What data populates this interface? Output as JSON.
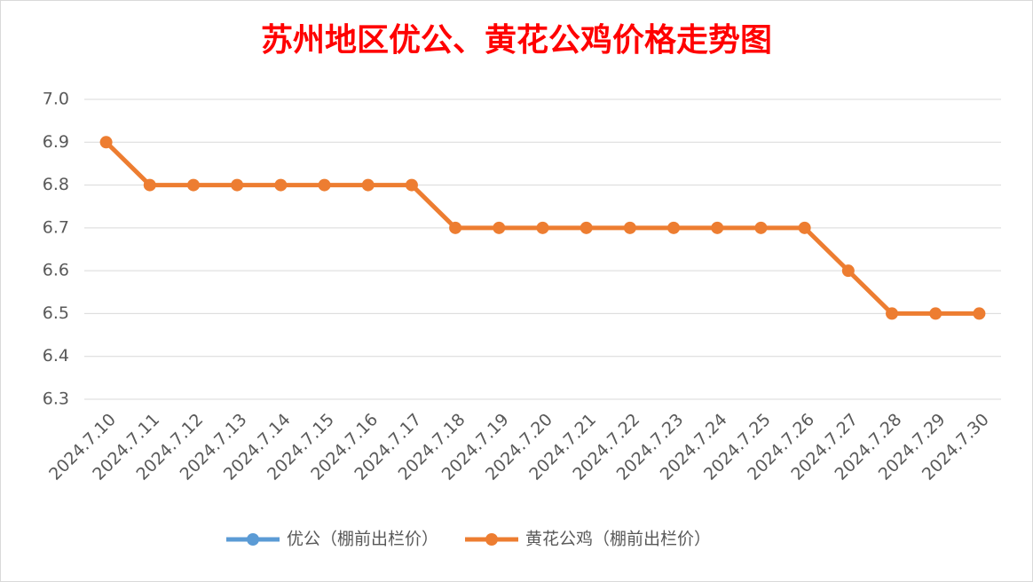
{
  "chart_data": {
    "type": "line",
    "title": "苏州地区优公、黄花公鸡价格走势图",
    "categories": [
      "2024.7.10",
      "2024.7.11",
      "2024.7.12",
      "2024.7.13",
      "2024.7.14",
      "2024.7.15",
      "2024.7.16",
      "2024.7.17",
      "2024.7.18",
      "2024.7.19",
      "2024.7.20",
      "2024.7.21",
      "2024.7.22",
      "2024.7.23",
      "2024.7.24",
      "2024.7.25",
      "2024.7.26",
      "2024.7.27",
      "2024.7.28",
      "2024.7.29",
      "2024.7.30"
    ],
    "series": [
      {
        "name": "优公（棚前出栏价）",
        "color": "#5b9bd5",
        "values": [
          null,
          null,
          null,
          null,
          null,
          null,
          null,
          null,
          null,
          null,
          null,
          null,
          null,
          null,
          null,
          null,
          null,
          null,
          null,
          null,
          null
        ]
      },
      {
        "name": "黄花公鸡（棚前出栏价）",
        "color": "#ed7d31",
        "values": [
          6.9,
          6.8,
          6.8,
          6.8,
          6.8,
          6.8,
          6.8,
          6.8,
          6.7,
          6.7,
          6.7,
          6.7,
          6.7,
          6.7,
          6.7,
          6.7,
          6.7,
          6.6,
          6.5,
          6.5,
          6.5
        ]
      }
    ],
    "ylim": [
      6.3,
      7.0
    ],
    "yticks": [
      6.3,
      6.4,
      6.5,
      6.6,
      6.7,
      6.8,
      6.9,
      {
        "value": 7.0,
        "label": "7.0"
      }
    ],
    "grid": true,
    "legend": "bottom"
  }
}
